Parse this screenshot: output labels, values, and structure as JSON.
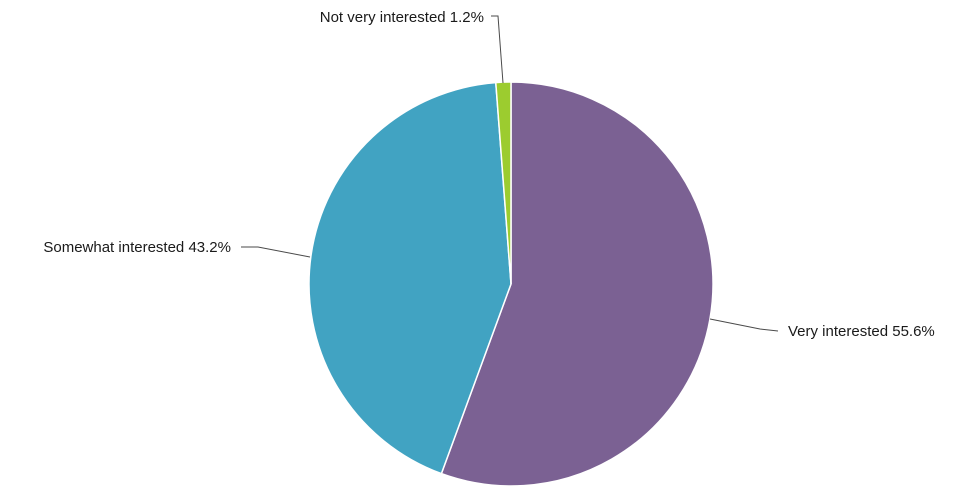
{
  "chart_data": {
    "type": "pie",
    "title": "",
    "start_angle_deg": 0,
    "direction": "clockwise",
    "slices": [
      {
        "label": "Very interested",
        "value": 55.6,
        "value_text": "55.6%",
        "color": "#7b6193"
      },
      {
        "label": "Somewhat interested",
        "value": 43.2,
        "value_text": "43.2%",
        "color": "#41a3c2"
      },
      {
        "label": "Not very interested",
        "value": 1.2,
        "value_text": "1.2%",
        "color": "#9ccc2f"
      }
    ]
  }
}
